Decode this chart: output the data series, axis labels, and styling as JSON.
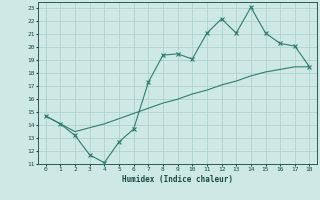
{
  "title": "",
  "xlabel": "Humidex (Indice chaleur)",
  "line1_x": [
    0,
    1,
    2,
    3,
    4,
    5,
    6,
    7,
    8,
    9,
    10,
    11,
    12,
    13,
    14,
    15,
    16,
    17,
    18
  ],
  "line1_y": [
    14.7,
    14.1,
    13.2,
    11.7,
    11.1,
    12.7,
    13.7,
    17.3,
    19.4,
    19.5,
    19.1,
    21.1,
    22.2,
    21.1,
    23.1,
    21.1,
    20.3,
    20.1,
    18.5
  ],
  "line2_x": [
    0,
    1,
    2,
    3,
    4,
    5,
    6,
    7,
    8,
    9,
    10,
    11,
    12,
    13,
    14,
    15,
    16,
    17,
    18
  ],
  "line2_y": [
    14.7,
    14.1,
    13.5,
    13.8,
    14.1,
    14.5,
    14.9,
    15.3,
    15.7,
    16.0,
    16.4,
    16.7,
    17.1,
    17.4,
    17.8,
    18.1,
    18.3,
    18.5,
    18.5
  ],
  "line_color": "#2e7d6e",
  "bg_color": "#cde8e5",
  "grid_color": "#aacfcb",
  "xlim": [
    -0.5,
    18.5
  ],
  "ylim": [
    11,
    23.5
  ],
  "yticks": [
    11,
    12,
    13,
    14,
    15,
    16,
    17,
    18,
    19,
    20,
    21,
    22,
    23
  ],
  "xticks": [
    0,
    1,
    2,
    3,
    4,
    5,
    6,
    7,
    8,
    9,
    10,
    11,
    12,
    13,
    14,
    15,
    16,
    17,
    18
  ]
}
